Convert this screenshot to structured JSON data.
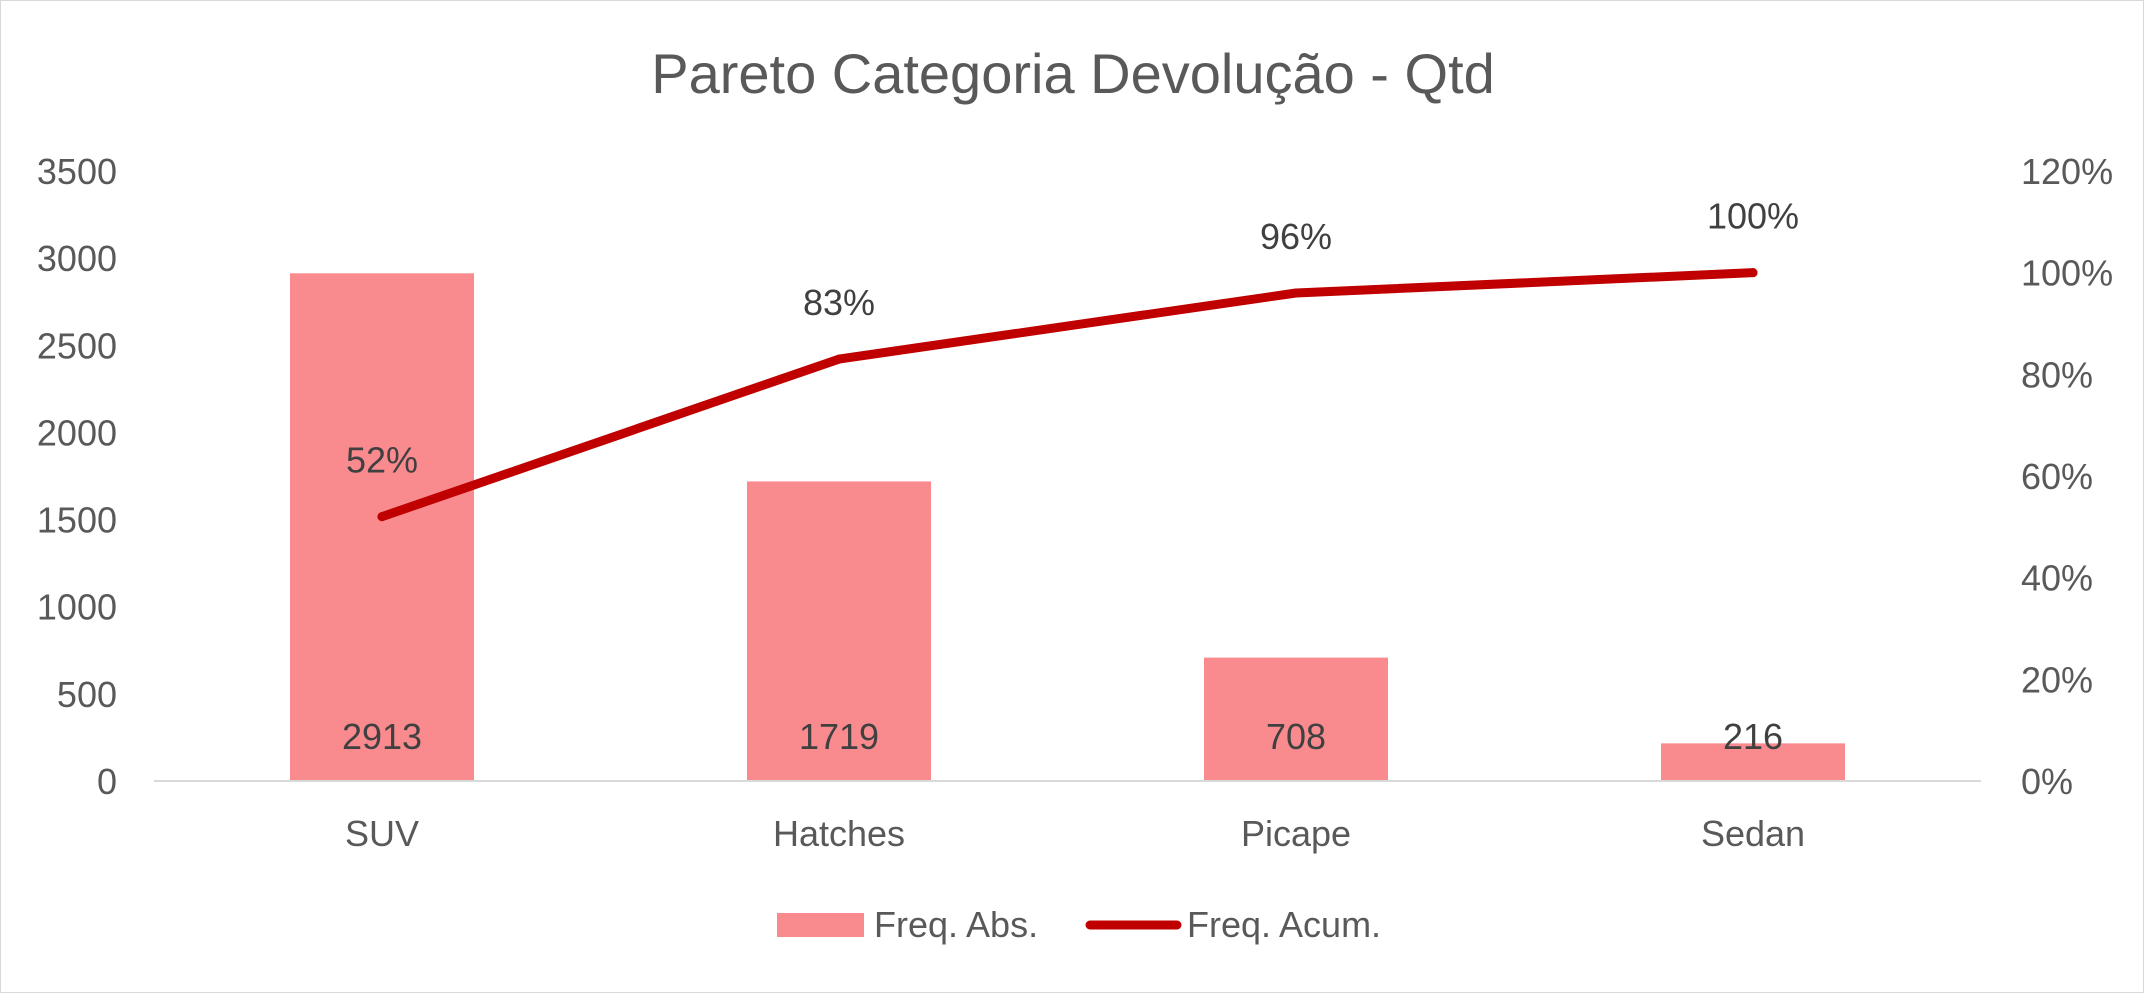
{
  "chart_data": {
    "type": "bar",
    "title": "Pareto Categoria Devolução - Qtd",
    "categories": [
      "SUV",
      "Hatches",
      "Picape",
      "Sedan"
    ],
    "series": [
      {
        "name": "Freq. Abs.",
        "type": "bar",
        "axis": "left",
        "color": "#f98b8f",
        "values": [
          2913,
          1719,
          708,
          216
        ],
        "labels": [
          "2913",
          "1719",
          "708",
          "216"
        ]
      },
      {
        "name": "Freq. Acum.",
        "type": "line",
        "axis": "right",
        "color": "#c00000",
        "values": [
          0.52,
          0.83,
          0.96,
          1.0
        ],
        "labels": [
          "52%",
          "83%",
          "96%",
          "100%"
        ]
      }
    ],
    "y_left": {
      "min": 0,
      "max": 3500,
      "ticks": [
        "0",
        "500",
        "1000",
        "1500",
        "2000",
        "2500",
        "3000",
        "3500"
      ]
    },
    "y_right": {
      "min": 0,
      "max": 1.2,
      "ticks": [
        "0%",
        "20%",
        "40%",
        "60%",
        "80%",
        "100%",
        "120%"
      ]
    },
    "grid": false,
    "legend_position": "bottom"
  }
}
